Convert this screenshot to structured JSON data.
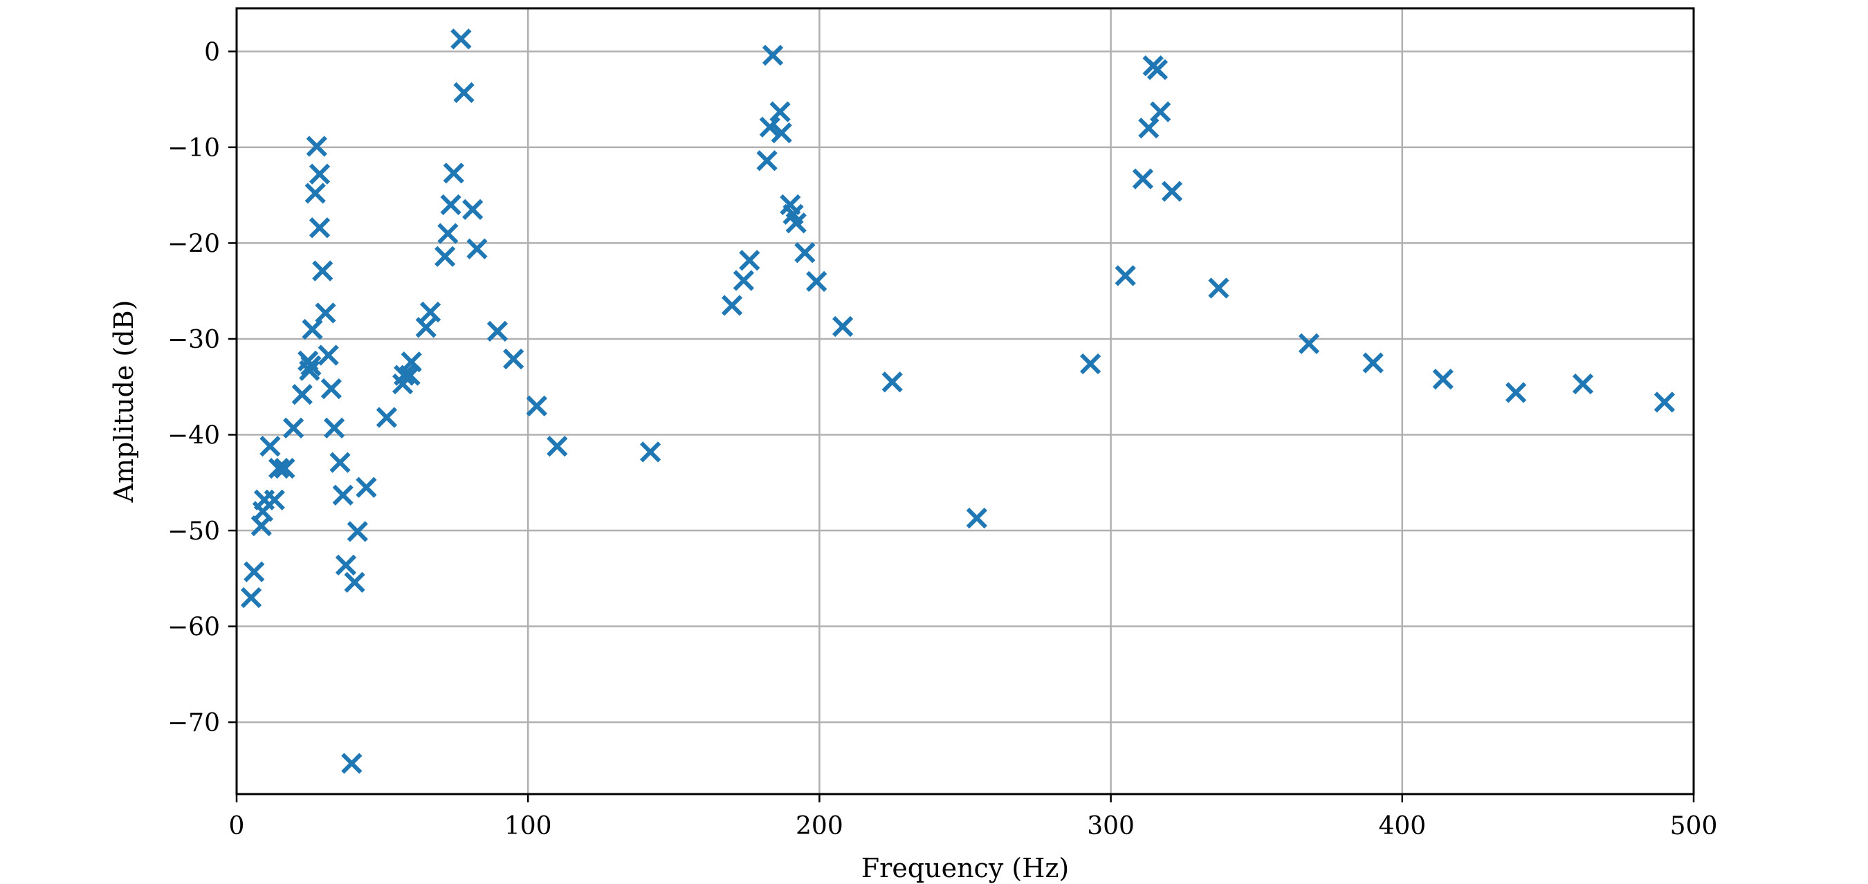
{
  "chart_data": {
    "type": "scatter",
    "title": "",
    "xlabel": "Frequency (Hz)",
    "ylabel": "Amplitude (dB)",
    "xlim": [
      0,
      500
    ],
    "ylim": [
      -77.5,
      4.5
    ],
    "x_ticks": [
      0,
      100,
      200,
      300,
      400,
      500
    ],
    "y_ticks": [
      0,
      -10,
      -20,
      -30,
      -40,
      -50,
      -60,
      -70
    ],
    "x_tick_labels": [
      "0",
      "100",
      "200",
      "300",
      "400",
      "500"
    ],
    "y_tick_labels": [
      "0",
      "−10",
      "−20",
      "−30",
      "−40",
      "−50",
      "−60",
      "−70"
    ],
    "grid": true,
    "legend": "none",
    "marker": "x",
    "color": "#1f77b4",
    "series": [
      {
        "points": [
          {
            "x": 5,
            "y": -57
          },
          {
            "x": 6,
            "y": -54.3
          },
          {
            "x": 8.5,
            "y": -49.5
          },
          {
            "x": 9,
            "y": -48
          },
          {
            "x": 9.5,
            "y": -46.8
          },
          {
            "x": 11.5,
            "y": -41.2
          },
          {
            "x": 13,
            "y": -46.8
          },
          {
            "x": 14.5,
            "y": -43.5
          },
          {
            "x": 16.5,
            "y": -43.5
          },
          {
            "x": 19.5,
            "y": -39.3
          },
          {
            "x": 22.5,
            "y": -35.8
          },
          {
            "x": 24.5,
            "y": -32.3
          },
          {
            "x": 25,
            "y": -33.3
          },
          {
            "x": 25.5,
            "y": -32.8
          },
          {
            "x": 26,
            "y": -29
          },
          {
            "x": 27,
            "y": -14.8
          },
          {
            "x": 27.5,
            "y": -9.9
          },
          {
            "x": 28.5,
            "y": -18.4
          },
          {
            "x": 28.5,
            "y": -12.8
          },
          {
            "x": 29.5,
            "y": -22.9
          },
          {
            "x": 30.5,
            "y": -27.3
          },
          {
            "x": 31.5,
            "y": -31.7
          },
          {
            "x": 32.5,
            "y": -35.2
          },
          {
            "x": 33.5,
            "y": -39.3
          },
          {
            "x": 35.5,
            "y": -42.9
          },
          {
            "x": 36.5,
            "y": -46.3
          },
          {
            "x": 37.5,
            "y": -53.6
          },
          {
            "x": 39.5,
            "y": -74.3
          },
          {
            "x": 40.5,
            "y": -55.4
          },
          {
            "x": 41.5,
            "y": -50.1
          },
          {
            "x": 44.5,
            "y": -45.5
          },
          {
            "x": 51.5,
            "y": -38.2
          },
          {
            "x": 57,
            "y": -34.7
          },
          {
            "x": 57.5,
            "y": -33.8
          },
          {
            "x": 59.5,
            "y": -33.8
          },
          {
            "x": 60,
            "y": -32.4
          },
          {
            "x": 65,
            "y": -28.8
          },
          {
            "x": 66.5,
            "y": -27.2
          },
          {
            "x": 71.5,
            "y": -21.4
          },
          {
            "x": 72.5,
            "y": -19
          },
          {
            "x": 73.5,
            "y": -16
          },
          {
            "x": 74.5,
            "y": -12.7
          },
          {
            "x": 77,
            "y": 1.3
          },
          {
            "x": 78,
            "y": -4.3
          },
          {
            "x": 81,
            "y": -16.5
          },
          {
            "x": 82.5,
            "y": -20.6
          },
          {
            "x": 89.5,
            "y": -29.2
          },
          {
            "x": 95,
            "y": -32.1
          },
          {
            "x": 103,
            "y": -37
          },
          {
            "x": 110,
            "y": -41.2
          },
          {
            "x": 142,
            "y": -41.8
          },
          {
            "x": 170,
            "y": -26.5
          },
          {
            "x": 174,
            "y": -23.9
          },
          {
            "x": 176,
            "y": -21.8
          },
          {
            "x": 182,
            "y": -11.4
          },
          {
            "x": 183,
            "y": -7.9
          },
          {
            "x": 184,
            "y": -0.4
          },
          {
            "x": 186.5,
            "y": -6.3
          },
          {
            "x": 187,
            "y": -8.5
          },
          {
            "x": 190,
            "y": -16
          },
          {
            "x": 191,
            "y": -17
          },
          {
            "x": 192,
            "y": -17.9
          },
          {
            "x": 195,
            "y": -21
          },
          {
            "x": 199,
            "y": -24
          },
          {
            "x": 208,
            "y": -28.7
          },
          {
            "x": 225,
            "y": -34.5
          },
          {
            "x": 254,
            "y": -48.7
          },
          {
            "x": 293,
            "y": -32.6
          },
          {
            "x": 305,
            "y": -23.4
          },
          {
            "x": 311,
            "y": -13.3
          },
          {
            "x": 313,
            "y": -8
          },
          {
            "x": 314.5,
            "y": -1.5
          },
          {
            "x": 316,
            "y": -1.9
          },
          {
            "x": 317,
            "y": -6.3
          },
          {
            "x": 321,
            "y": -14.6
          },
          {
            "x": 337,
            "y": -24.7
          },
          {
            "x": 368,
            "y": -30.5
          },
          {
            "x": 390,
            "y": -32.5
          },
          {
            "x": 414,
            "y": -34.2
          },
          {
            "x": 439,
            "y": -35.6
          },
          {
            "x": 462,
            "y": -34.7
          },
          {
            "x": 490,
            "y": -36.6
          }
        ]
      }
    ]
  }
}
